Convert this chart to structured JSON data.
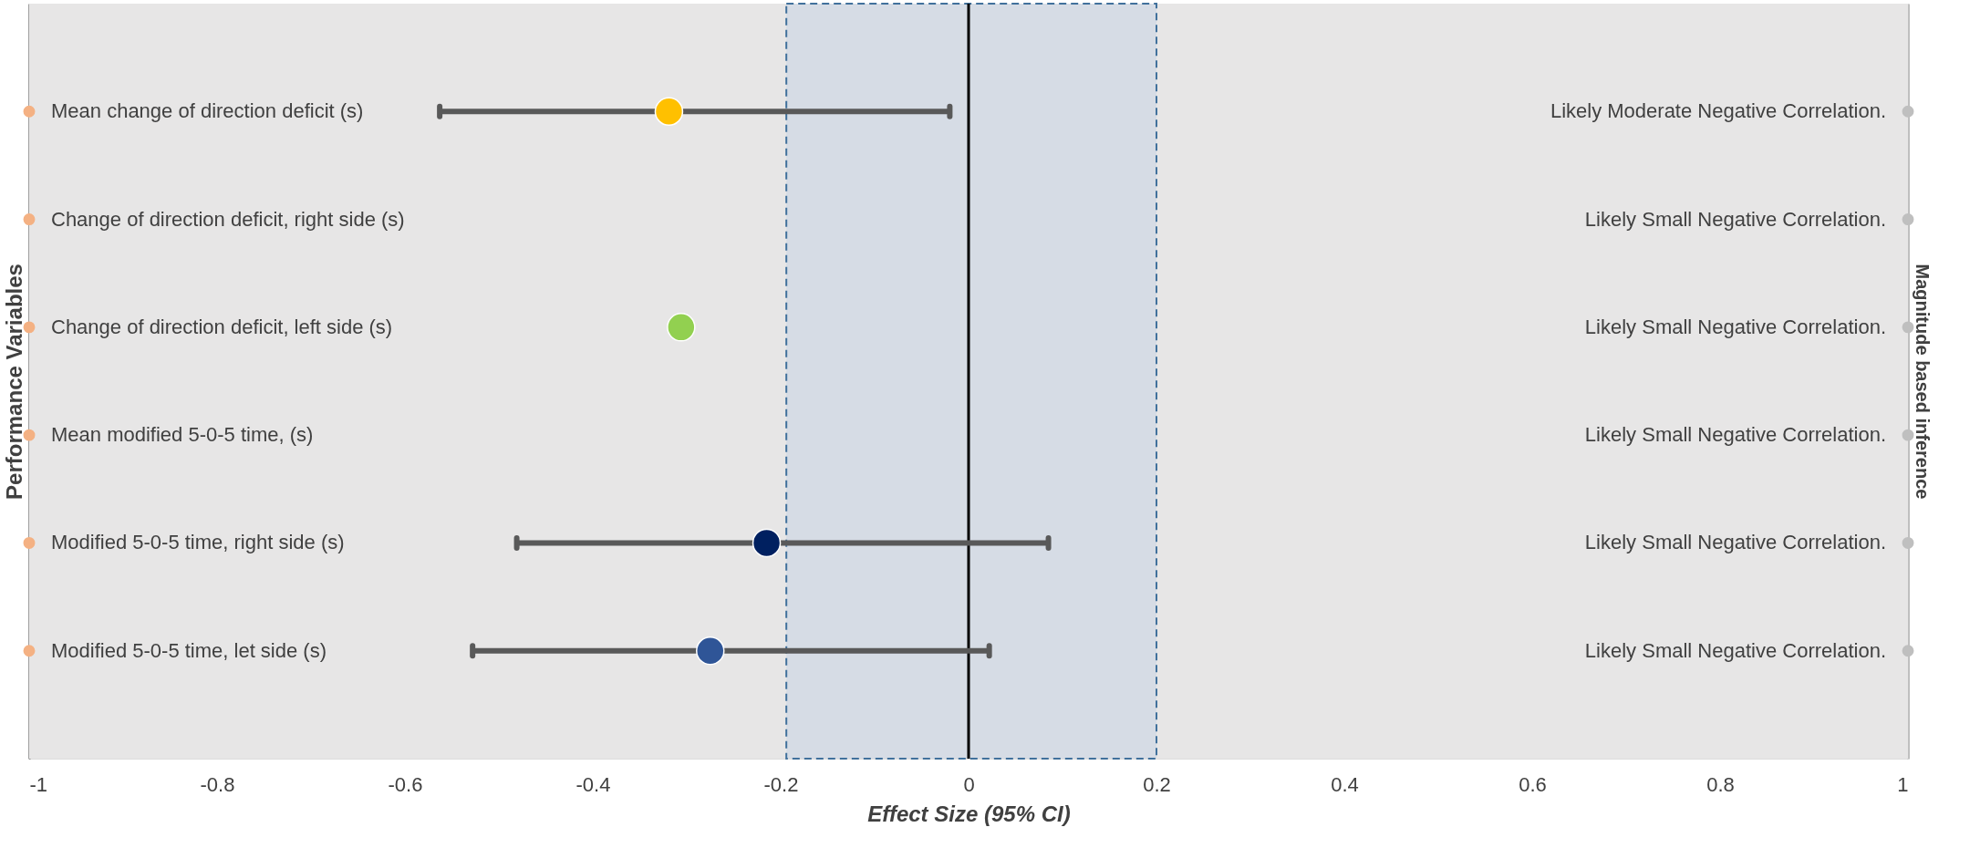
{
  "chart_data": {
    "type": "scatter",
    "orientation": "horizontal",
    "marker": "circle",
    "xlabel": "Effect Size (95% CI)",
    "ylabel": "Performance Variables",
    "y2label": "Magnitude based inference",
    "categories": [
      "Mean change of direction deficit (s)",
      "Change of direction deficit, right side (s)",
      "Change of direction deficit, left side (s)",
      "Mean modified 5-0-5 time,  (s)",
      "Modified 5-0-5 time, right side (s)",
      "Modified 5-0-5 time, let side (s)"
    ],
    "y2_categories": [
      "Likely Moderate Negative Correlation.",
      "Likely Small Negative Correlation.",
      "Likely Small Negative Correlation.",
      "Likely Small Negative Correlation.",
      "Likely Small Negative Correlation.",
      "Likely Small Negative Correlation."
    ],
    "xlim": [
      -1,
      1
    ],
    "xticks": [
      -1,
      -0.8,
      -0.6,
      -0.4,
      -0.2,
      0,
      0.2,
      0.4,
      0.6,
      0.8,
      1
    ],
    "series": [
      {
        "colors": [
          "#ffc000",
          null,
          "#92d050",
          null,
          "#002060",
          "#2f5597"
        ],
        "values": [
          -0.319,
          null,
          -0.306,
          null,
          -0.215,
          -0.275
        ],
        "errors": [
          [
            -0.563,
            -0.02
          ],
          null,
          null,
          null,
          [
            -0.481,
            0.085
          ],
          [
            -0.528,
            0.022
          ]
        ]
      },
      {
        "color": "#f4b183",
        "values": [
          -1,
          -1,
          -1,
          -1,
          -1,
          -1
        ]
      },
      {
        "color": "#bfbfbf",
        "values": [
          1,
          1,
          1,
          1,
          1,
          1
        ]
      }
    ],
    "ref_lines": [
      {
        "axis": "x",
        "value": 0,
        "color": "#000000"
      }
    ],
    "bands": [
      {
        "axis": "x",
        "from": -0.194,
        "to": 0.2,
        "color": "#d6dce5"
      }
    ]
  }
}
